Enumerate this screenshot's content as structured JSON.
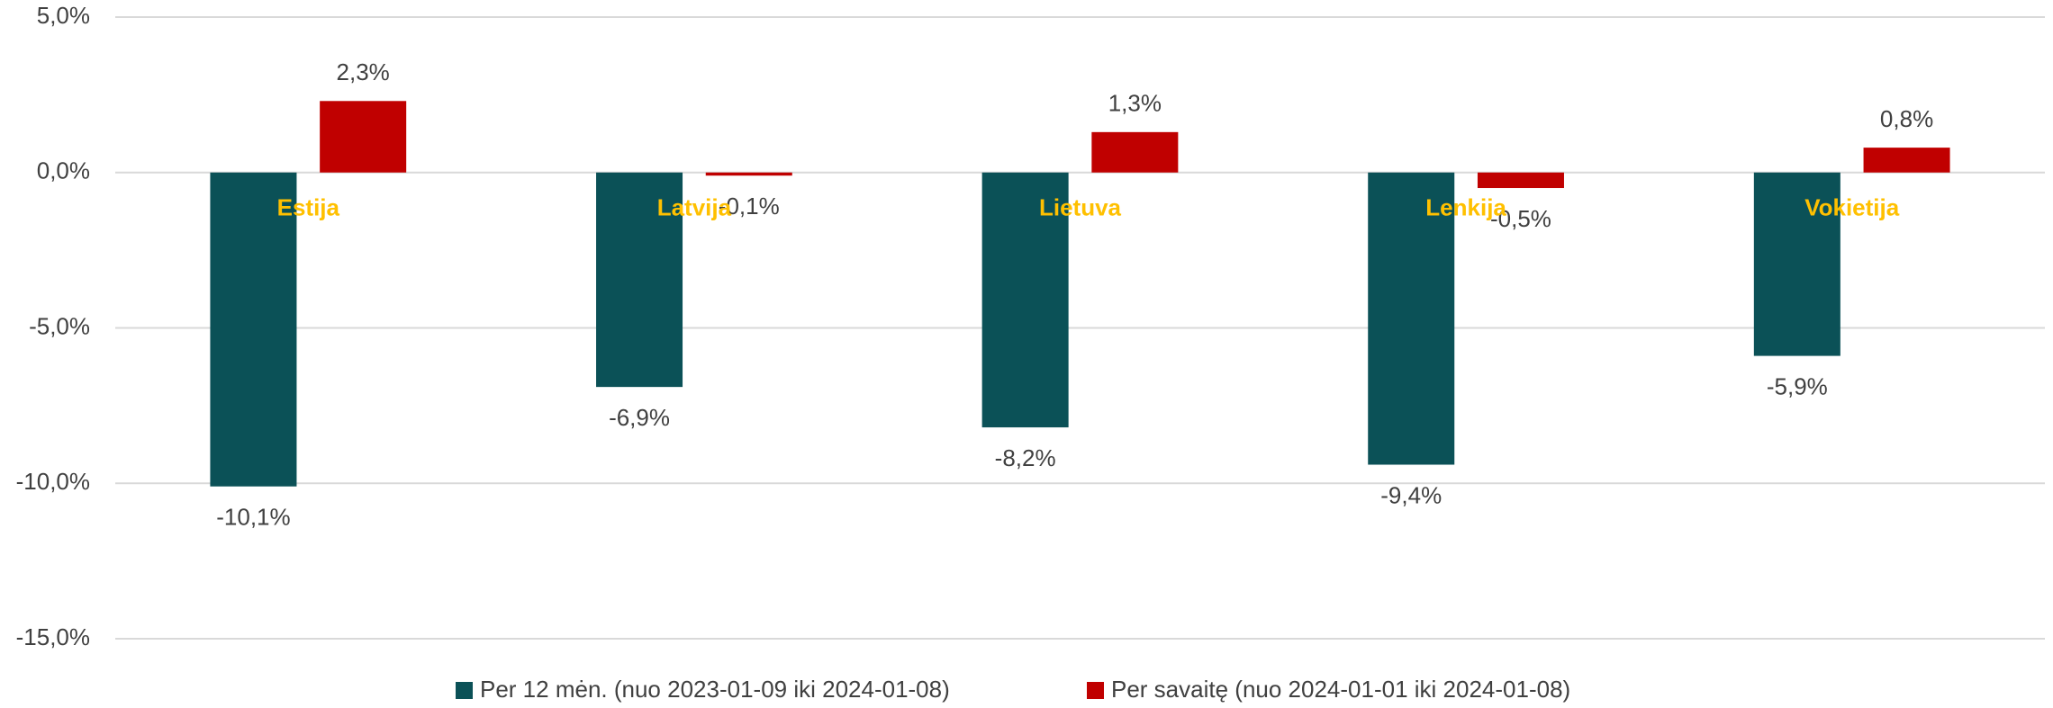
{
  "chart_data": {
    "type": "bar",
    "categories": [
      "Estija",
      "Latvija",
      "Lietuva",
      "Lenkija",
      "Vokietija"
    ],
    "series": [
      {
        "name": "Per 12 mėn. (nuo 2023-01-09 iki 2024-01-08)",
        "color": "#0b5157",
        "values": [
          -10.1,
          -6.9,
          -8.2,
          -9.4,
          -5.9
        ],
        "value_labels": [
          "-10,1%",
          "-6,9%",
          "-8,2%",
          "-9,4%",
          "-5,9%"
        ]
      },
      {
        "name": "Per savaitę (nuo 2024-01-01 iki 2024-01-08)",
        "color": "#c00000",
        "values": [
          2.3,
          -0.1,
          1.3,
          -0.5,
          0.8
        ],
        "value_labels": [
          "2,3%",
          "-0,1%",
          "1,3%",
          "-0,5%",
          "0,8%"
        ]
      }
    ],
    "ylim": [
      -15,
      5
    ],
    "yticks": [
      {
        "value": -15,
        "label": "-15,0%"
      },
      {
        "value": -10,
        "label": "-10,0%"
      },
      {
        "value": -5,
        "label": "-5,0%"
      },
      {
        "value": 0,
        "label": "0,0%"
      },
      {
        "value": 5,
        "label": "5,0%"
      }
    ],
    "grid": true,
    "legend": "bottom"
  }
}
